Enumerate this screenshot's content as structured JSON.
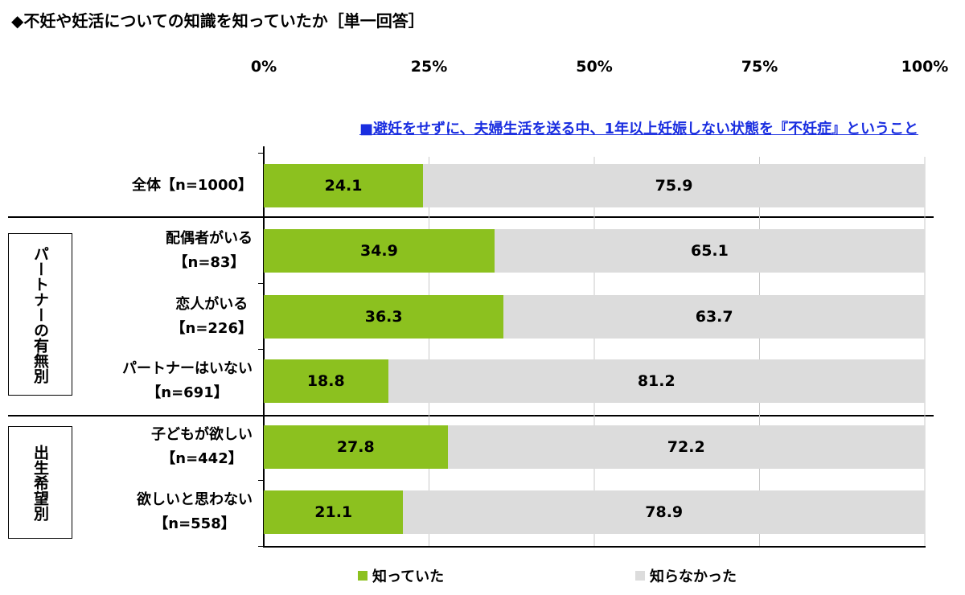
{
  "title": "◆不妊や妊活についての知識を知っていたか［単一回答］",
  "subtitle": "■避妊をせずに、夫婦生活を送る中、1年以上妊娠しない状態を『不妊症』ということ",
  "colors": {
    "known": "#8cc11f",
    "unknown": "#dcdcdc",
    "subtitle": "#1a2ee0"
  },
  "groups": [
    {
      "label": "パートナーの有無別"
    },
    {
      "label": "出生希望別"
    }
  ],
  "rows": [
    {
      "line1": "全体【n=1000】",
      "line2": ""
    },
    {
      "line1": "配偶者がいる",
      "line2": "【n=83】"
    },
    {
      "line1": "恋人がいる",
      "line2": "【n=226】"
    },
    {
      "line1": "パートナーはいない",
      "line2": "【n=691】"
    },
    {
      "line1": "子どもが欲しい",
      "line2": "【n=442】"
    },
    {
      "line1": "欲しいと思わない",
      "line2": "【n=558】"
    }
  ],
  "chart_data": {
    "type": "bar",
    "stacked": true,
    "orientation": "horizontal",
    "x_ticks": [
      "0%",
      "25%",
      "50%",
      "75%",
      "100%"
    ],
    "xlim": [
      0,
      100
    ],
    "categories": [
      "全体【n=1000】",
      "配偶者がいる【n=83】",
      "恋人がいる【n=226】",
      "パートナーはいない【n=691】",
      "子どもが欲しい【n=442】",
      "欲しいと思わない【n=558】"
    ],
    "series": [
      {
        "name": "知っていた",
        "values": [
          24.1,
          34.9,
          36.3,
          18.8,
          27.8,
          21.1
        ],
        "labels": [
          "24.1",
          "34.9",
          "36.3",
          "18.8",
          "27.8",
          "21.1"
        ]
      },
      {
        "name": "知らなかった",
        "values": [
          75.9,
          65.1,
          63.7,
          81.2,
          72.2,
          78.9
        ],
        "labels": [
          "75.9",
          "65.1",
          "63.7",
          "81.2",
          "72.2",
          "78.9"
        ]
      }
    ],
    "legend_position": "bottom"
  }
}
